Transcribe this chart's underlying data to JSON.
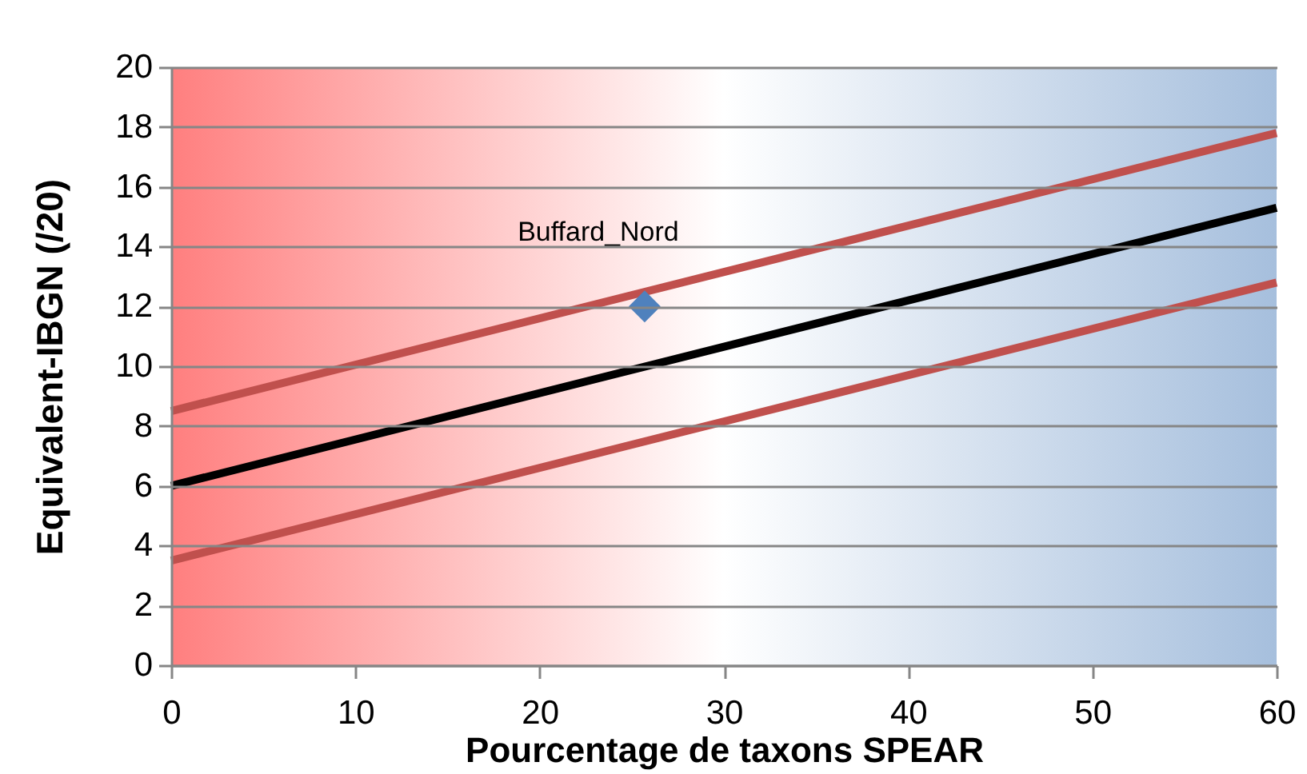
{
  "chart_data": {
    "type": "line",
    "xlabel": "Pourcentage de taxons SPEAR",
    "ylabel": "Equivalent-IBGN (/20)",
    "xlim": [
      0,
      60
    ],
    "xticks": [
      0,
      10,
      20,
      30,
      40,
      50,
      60
    ],
    "ylim": [
      0,
      20
    ],
    "yticks": [
      0,
      2,
      4,
      6,
      8,
      10,
      12,
      14,
      16,
      18,
      20
    ],
    "grid": "y",
    "line_style": "solid",
    "marker": "none",
    "bands": [
      {
        "axis": "x",
        "from": 0,
        "to": 30,
        "color": "#ff7f7f"
      },
      {
        "axis": "x",
        "from": 30,
        "to": 60,
        "color": "#a6bfdd"
      }
    ],
    "series": [
      {
        "color": "#c0504d",
        "x": [
          0,
          60
        ],
        "values": [
          8.5,
          17.8
        ]
      },
      {
        "color": "#000000",
        "x": [
          0,
          60
        ],
        "values": [
          6,
          15.3
        ]
      },
      {
        "color": "#c0504d",
        "x": [
          0,
          60
        ],
        "values": [
          3.5,
          12.8
        ]
      },
      {
        "type": "scatter",
        "name": "Buffard_Nord",
        "color": "#4f81bd",
        "marker": "diamond",
        "x": [
          25.7
        ],
        "values": [
          12
        ]
      }
    ]
  }
}
